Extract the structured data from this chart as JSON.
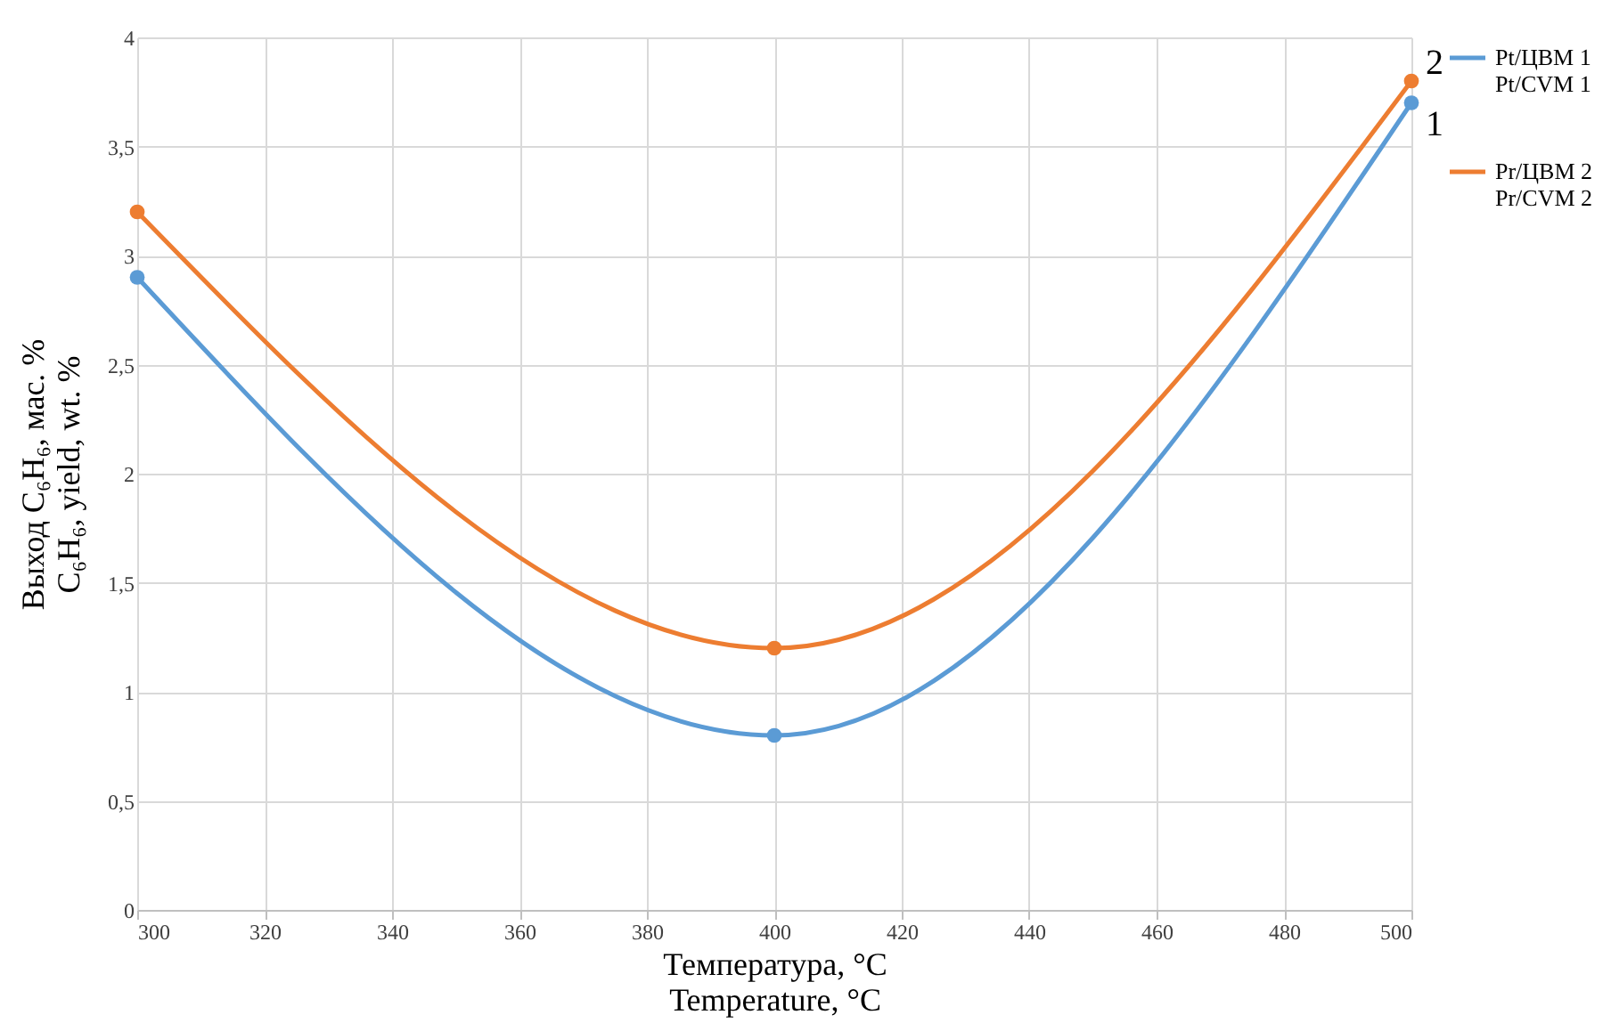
{
  "chart_data": {
    "type": "line",
    "xlabel": "Температура, °C\nTemperature, °C",
    "ylabel": "Выход C₆H₆,  мас. %\nC₆H₆, yield, wt. %",
    "x": [
      300,
      400,
      500
    ],
    "series": [
      {
        "name": "Pt/ЦВМ 1\nPt/CVM 1",
        "color": "#5b9bd5",
        "values": [
          2.9,
          0.8,
          3.7
        ]
      },
      {
        "name": "Pr/ЦВМ 2\nPr/CVM 2",
        "color": "#ed7d31",
        "values": [
          3.2,
          1.2,
          3.8
        ]
      }
    ],
    "xlim": [
      300,
      500
    ],
    "xticks": [
      300,
      320,
      340,
      360,
      380,
      400,
      420,
      440,
      460,
      480,
      500
    ],
    "ylim": [
      0,
      4
    ],
    "yticks": [
      0,
      {
        "value": 0.5,
        "label": "0,5"
      },
      1,
      {
        "value": 1.5,
        "label": "1,5"
      },
      2,
      {
        "value": 2.5,
        "label": "2,5"
      },
      3,
      {
        "value": 3.5,
        "label": "3,5"
      },
      4
    ],
    "annotations": [
      {
        "text": "1",
        "x": 500,
        "y": 3.7
      },
      {
        "text": "2",
        "x": 500,
        "y": 3.8
      }
    ],
    "grid": true,
    "legend": "right",
    "marker": "circle",
    "line_style": "solid"
  }
}
